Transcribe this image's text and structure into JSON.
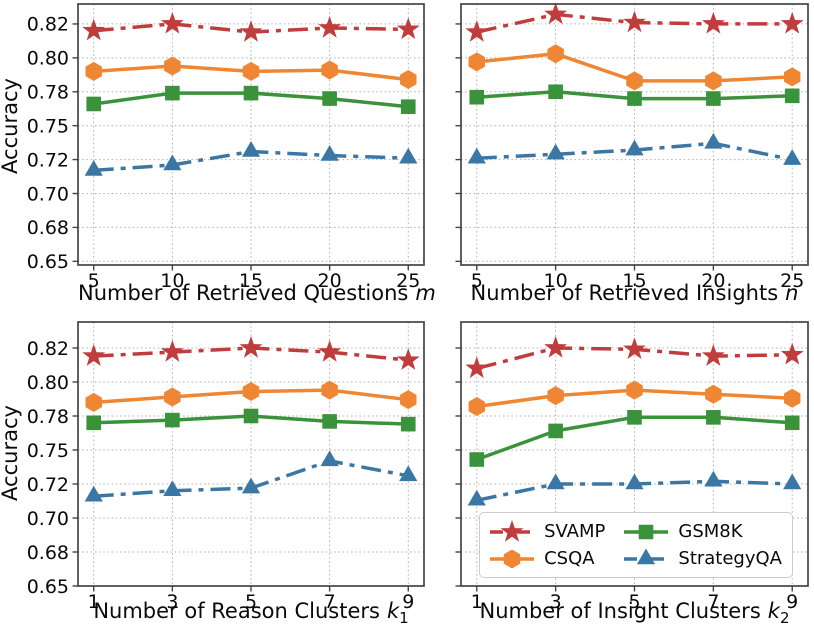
{
  "figure_bg": "#ffffff",
  "ylabel": "Accuracy",
  "series_styles": [
    {
      "name": "SVAMP",
      "color": "#c03d3e",
      "marker": "star",
      "linestyle": "dashdot"
    },
    {
      "name": "CSQA",
      "color": "#ee8634",
      "marker": "hexagon",
      "linestyle": "solid"
    },
    {
      "name": "GSM8K",
      "color": "#3a923a",
      "marker": "square",
      "linestyle": "solid"
    },
    {
      "name": "StrategyQA",
      "color": "#3b77a5",
      "marker": "triangle",
      "linestyle": "dashdot"
    }
  ],
  "y_axis": {
    "tick_values": [
      0.65,
      0.675,
      0.7,
      0.725,
      0.75,
      0.775,
      0.8,
      0.825
    ],
    "tick_labels": [
      "0.65",
      "0.68",
      "0.70",
      "0.72",
      "0.75",
      "0.78",
      "0.80",
      "0.82"
    ]
  },
  "grid": {
    "on": true,
    "style": "dotted",
    "color": "#b3b3b3"
  },
  "legend_position": "lower right of bottom-right subplot",
  "chart_data": [
    {
      "type": "line",
      "xlabel_prefix": "Number of Retrieved Questions",
      "xlabel_var": "m",
      "xlabel_sub": "",
      "ylabel": "Accuracy",
      "x": [
        5,
        10,
        15,
        20,
        25
      ],
      "xlim": [
        4,
        26
      ],
      "ylim": [
        0.6473,
        0.8397
      ],
      "y_ticks_visible": true,
      "series": [
        {
          "name": "SVAMP",
          "values": [
            0.82,
            0.825,
            0.819,
            0.822,
            0.821
          ]
        },
        {
          "name": "CSQA",
          "values": [
            0.79,
            0.794,
            0.79,
            0.791,
            0.784
          ]
        },
        {
          "name": "GSM8K",
          "values": [
            0.766,
            0.774,
            0.774,
            0.77,
            0.764
          ]
        },
        {
          "name": "StrategyQA",
          "values": [
            0.717,
            0.721,
            0.731,
            0.728,
            0.726
          ]
        }
      ]
    },
    {
      "type": "line",
      "xlabel_prefix": "Number of Retrieved Insights",
      "xlabel_var": "n",
      "xlabel_sub": "",
      "ylabel": "Accuracy",
      "x": [
        5,
        10,
        15,
        20,
        25
      ],
      "xlim": [
        4,
        26
      ],
      "ylim": [
        0.6473,
        0.8397
      ],
      "y_ticks_visible": false,
      "series": [
        {
          "name": "SVAMP",
          "values": [
            0.819,
            0.832,
            0.826,
            0.825,
            0.825
          ]
        },
        {
          "name": "CSQA",
          "values": [
            0.797,
            0.803,
            0.783,
            0.783,
            0.786
          ]
        },
        {
          "name": "GSM8K",
          "values": [
            0.771,
            0.775,
            0.77,
            0.77,
            0.772
          ]
        },
        {
          "name": "StrategyQA",
          "values": [
            0.726,
            0.729,
            0.732,
            0.737,
            0.725
          ]
        }
      ]
    },
    {
      "type": "line",
      "xlabel_prefix": "Number of Reason Clusters",
      "xlabel_var": "k",
      "xlabel_sub": "1",
      "ylabel": "Accuracy",
      "x": [
        1,
        3,
        5,
        7,
        9
      ],
      "xlim": [
        0.6,
        9.4
      ],
      "ylim": [
        0.65,
        0.8441
      ],
      "y_ticks_visible": true,
      "series": [
        {
          "name": "SVAMP",
          "values": [
            0.819,
            0.822,
            0.825,
            0.822,
            0.816
          ]
        },
        {
          "name": "CSQA",
          "values": [
            0.785,
            0.789,
            0.793,
            0.794,
            0.787
          ]
        },
        {
          "name": "GSM8K",
          "values": [
            0.77,
            0.772,
            0.775,
            0.771,
            0.769
          ]
        },
        {
          "name": "StrategyQA",
          "values": [
            0.716,
            0.72,
            0.722,
            0.742,
            0.731
          ]
        }
      ]
    },
    {
      "type": "line",
      "xlabel_prefix": "Number of Insight Clusters",
      "xlabel_var": "k",
      "xlabel_sub": "2",
      "ylabel": "Accuracy",
      "x": [
        1,
        3,
        5,
        7,
        9
      ],
      "xlim": [
        0.6,
        9.4
      ],
      "ylim": [
        0.65,
        0.8441
      ],
      "y_ticks_visible": false,
      "has_legend": true,
      "series": [
        {
          "name": "SVAMP",
          "values": [
            0.81,
            0.825,
            0.824,
            0.819,
            0.82
          ]
        },
        {
          "name": "CSQA",
          "values": [
            0.782,
            0.79,
            0.794,
            0.791,
            0.788
          ]
        },
        {
          "name": "GSM8K",
          "values": [
            0.743,
            0.764,
            0.774,
            0.774,
            0.77
          ]
        },
        {
          "name": "StrategyQA",
          "values": [
            0.713,
            0.725,
            0.725,
            0.727,
            0.725
          ]
        }
      ]
    }
  ]
}
